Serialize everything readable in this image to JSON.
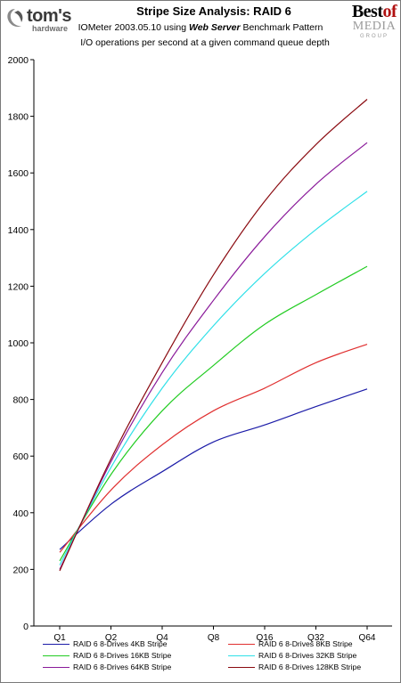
{
  "logos": {
    "left": {
      "name": "tom's",
      "sub": "hardware"
    },
    "right": {
      "line1_a": "Best",
      "line1_b": "of",
      "line2": "MEDIA",
      "line3": "GROUP"
    }
  },
  "header": {
    "title": "Stripe Size Analysis: RAID 6",
    "subtitle_pre": "IOMeter 2003.05.10 using ",
    "subtitle_em": "Web Server",
    "subtitle_post": " Benchmark Pattern",
    "subtitle2": "I/O operations per second at a given command queue depth"
  },
  "chart_data": {
    "type": "line",
    "title": "Stripe Size Analysis: RAID 6",
    "xlabel": "",
    "ylabel": "",
    "categories": [
      "Q1",
      "Q2",
      "Q4",
      "Q8",
      "Q16",
      "Q32",
      "Q64"
    ],
    "ylim": [
      0,
      2000
    ],
    "yticks": [
      0,
      200,
      400,
      600,
      800,
      1000,
      1200,
      1400,
      1600,
      1800,
      2000
    ],
    "grid": false,
    "legend_position": "bottom",
    "series": [
      {
        "name": "RAID 6 8-Drives 4KB Stripe",
        "color": "#1c1ca8",
        "values": [
          270,
          430,
          545,
          650,
          710,
          775,
          837
        ]
      },
      {
        "name": "RAID 6 8-Drives 8KB Stripe",
        "color": "#e03030",
        "values": [
          260,
          480,
          640,
          760,
          840,
          930,
          995
        ]
      },
      {
        "name": "RAID 6 8-Drives 16KB Stripe",
        "color": "#22cc22",
        "values": [
          230,
          535,
          760,
          920,
          1065,
          1170,
          1270
        ]
      },
      {
        "name": "RAID 6 8-Drives 32KB Stripe",
        "color": "#30e0e8",
        "values": [
          215,
          560,
          840,
          1060,
          1245,
          1400,
          1535
        ]
      },
      {
        "name": "RAID 6 8-Drives 64KB Stripe",
        "color": "#8a1a9a",
        "values": [
          200,
          580,
          895,
          1150,
          1375,
          1560,
          1707
        ]
      },
      {
        "name": "RAID 6 8-Drives 128KB Stripe",
        "color": "#8a0a10",
        "values": [
          195,
          590,
          930,
          1240,
          1500,
          1700,
          1860
        ]
      }
    ]
  }
}
